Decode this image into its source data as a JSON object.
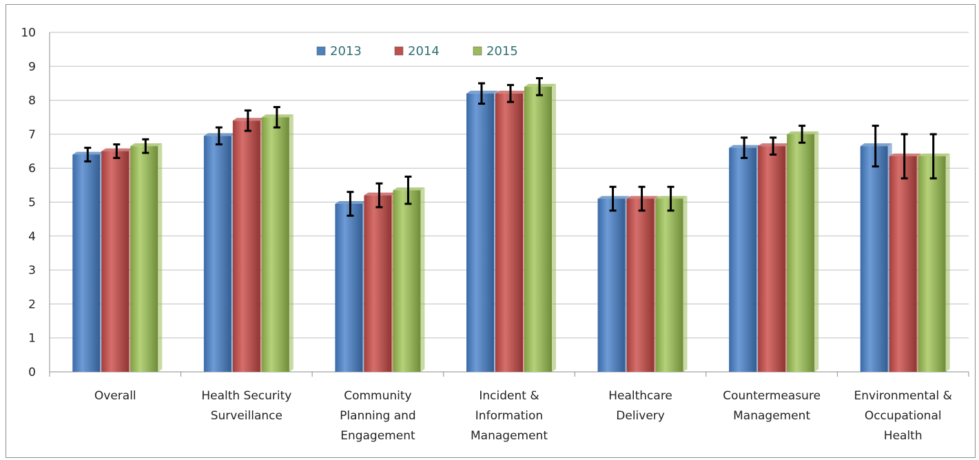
{
  "chart_data": {
    "type": "bar",
    "ylim": [
      0,
      10
    ],
    "yticks": [
      "0",
      "1",
      "2",
      "3",
      "4",
      "5",
      "6",
      "7",
      "8",
      "9",
      "10"
    ],
    "grid": true,
    "legend_position": "top",
    "categories": [
      [
        "Overall"
      ],
      [
        "Health Security",
        "Surveillance"
      ],
      [
        "Community",
        "Planning and",
        "Engagement"
      ],
      [
        "Incident &",
        "Information",
        "Management"
      ],
      [
        "Healthcare",
        "Delivery"
      ],
      [
        "Countermeasure",
        "Management"
      ],
      [
        "Environmental &",
        "Occupational",
        "Health"
      ]
    ],
    "series": [
      {
        "name": "2013",
        "color": "#4f81bd",
        "values": [
          6.4,
          6.95,
          4.95,
          8.2,
          5.1,
          6.6,
          6.65
        ],
        "error": [
          0.2,
          0.25,
          0.35,
          0.3,
          0.35,
          0.3,
          0.6
        ]
      },
      {
        "name": "2014",
        "color": "#c0504d",
        "values": [
          6.5,
          7.4,
          5.2,
          8.2,
          5.1,
          6.65,
          6.35
        ],
        "error": [
          0.2,
          0.3,
          0.35,
          0.25,
          0.35,
          0.25,
          0.65
        ]
      },
      {
        "name": "2015",
        "color": "#9bbb59",
        "values": [
          6.65,
          7.5,
          5.35,
          8.4,
          5.1,
          7.0,
          6.35
        ],
        "error": [
          0.2,
          0.3,
          0.4,
          0.25,
          0.35,
          0.25,
          0.65
        ]
      }
    ]
  }
}
